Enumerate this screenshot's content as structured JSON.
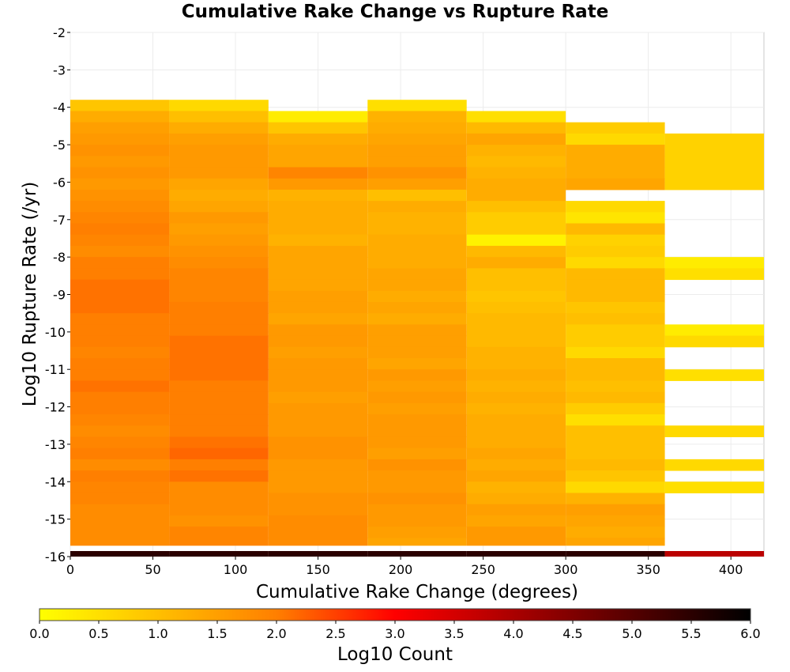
{
  "chart_data": {
    "type": "heatmap",
    "title": "Cumulative Rake Change vs Rupture Rate",
    "xlabel": "Cumulative Rake Change (degrees)",
    "ylabel": "Log10 Rupture Rate (/yr)",
    "xlim": [
      0,
      420
    ],
    "ylim": [
      -16,
      -2
    ],
    "x_ticks": [
      "0",
      "50",
      "100",
      "150",
      "200",
      "250",
      "300",
      "350",
      "400"
    ],
    "x_tick_values": [
      0,
      50,
      100,
      150,
      200,
      250,
      300,
      350,
      400
    ],
    "y_ticks": [
      "-2",
      "-3",
      "-4",
      "-5",
      "-6",
      "-7",
      "-8",
      "-9",
      "-10",
      "-11",
      "-12",
      "-13",
      "-14",
      "-15",
      "-16"
    ],
    "y_tick_values": [
      -2,
      -3,
      -4,
      -5,
      -6,
      -7,
      -8,
      -9,
      -10,
      -11,
      -12,
      -13,
      -14,
      -15,
      -16
    ],
    "grid": true,
    "x_bin_width": 60,
    "y_bin_height": 0.3,
    "x_bins": [
      0,
      60,
      120,
      180,
      240,
      300,
      360
    ],
    "columns": [
      {
        "x": 0,
        "y_top": -3.8,
        "values": [
          0.9,
          1.3,
          1.5,
          1.6,
          1.7,
          1.6,
          1.7,
          1.6,
          1.7,
          1.8,
          1.9,
          2.0,
          1.9,
          1.8,
          2.0,
          2.0,
          2.1,
          2.1,
          2.1,
          2.0,
          2.0,
          2.0,
          1.9,
          2.0,
          2.0,
          2.1,
          2.0,
          2.0,
          1.9,
          1.8,
          1.9,
          2.0,
          1.8,
          2.0,
          1.9,
          1.9,
          1.8,
          1.8,
          1.8,
          1.8,
          1.9,
          1.9,
          2.0,
          1.9
        ]
      },
      {
        "x": 60,
        "y_top": -3.8,
        "values": [
          0.6,
          1.0,
          1.3,
          1.5,
          1.6,
          1.6,
          1.6,
          1.4,
          1.3,
          1.4,
          1.6,
          1.5,
          1.6,
          1.7,
          1.8,
          1.9,
          1.9,
          1.9,
          2.0,
          2.0,
          2.0,
          2.1,
          2.1,
          2.1,
          2.1,
          2.0,
          2.0,
          2.0,
          2.0,
          2.0,
          2.1,
          2.2,
          2.0,
          2.1,
          1.8,
          1.8,
          1.8,
          1.7,
          1.9,
          1.9,
          1.9,
          2.0,
          2.0,
          2.0
        ]
      },
      {
        "x": 120,
        "y_top": -4.1,
        "values": [
          0.3,
          0.9,
          1.3,
          1.4,
          1.4,
          1.9,
          1.6,
          1.2,
          1.3,
          1.3,
          1.3,
          1.2,
          1.4,
          1.4,
          1.4,
          1.4,
          1.5,
          1.5,
          1.4,
          1.6,
          1.6,
          1.5,
          1.6,
          1.6,
          1.6,
          1.5,
          1.6,
          1.6,
          1.6,
          1.7,
          1.7,
          1.6,
          1.6,
          1.6,
          1.7,
          1.7,
          1.8,
          1.8,
          1.8,
          1.8
        ]
      },
      {
        "x": 180,
        "y_top": -3.8,
        "values": [
          0.5,
          1.2,
          1.3,
          1.4,
          1.5,
          1.5,
          1.7,
          1.5,
          1.0,
          1.3,
          1.2,
          1.2,
          1.3,
          1.3,
          1.3,
          1.4,
          1.4,
          1.3,
          1.4,
          1.3,
          1.5,
          1.5,
          1.5,
          1.4,
          1.6,
          1.5,
          1.6,
          1.5,
          1.6,
          1.6,
          1.6,
          1.5,
          1.7,
          1.6,
          1.6,
          1.7,
          1.6,
          1.6,
          1.5,
          1.4,
          1.6,
          1.6,
          1.5,
          2.0
        ]
      },
      {
        "x": 240,
        "y_top": -4.1,
        "values": [
          0.5,
          1.1,
          1.4,
          1.2,
          1.1,
          1.2,
          1.3,
          1.3,
          1.0,
          0.8,
          0.8,
          0.2,
          1.1,
          1.3,
          1.0,
          1.0,
          0.9,
          1.0,
          1.1,
          1.1,
          1.1,
          1.2,
          1.2,
          1.3,
          1.2,
          1.3,
          1.2,
          1.3,
          1.3,
          1.3,
          1.4,
          1.3,
          1.4,
          1.2,
          1.3,
          1.5,
          1.4,
          1.6,
          1.6,
          1.6
        ]
      },
      {
        "x": 300,
        "y_top": -4.4,
        "values": [
          0.8,
          0.6,
          1.3,
          1.3,
          1.3,
          1.4,
          null,
          0.6,
          0.4,
          1.1,
          0.7,
          0.8,
          0.6,
          1.1,
          1.1,
          1.1,
          0.9,
          1.0,
          0.8,
          0.8,
          0.6,
          1.1,
          1.1,
          1.0,
          1.1,
          0.8,
          0.5,
          1.0,
          1.0,
          1.0,
          1.1,
          0.9,
          0.6,
          1.2,
          1.5,
          1.4,
          1.3,
          1.4,
          1.4,
          1.5
        ]
      },
      {
        "x": 360,
        "y_top": -4.7,
        "values": [
          0.7,
          0.7,
          0.7,
          0.7,
          0.7,
          null,
          null,
          null,
          null,
          null,
          null,
          0.3,
          0.5,
          null,
          null,
          null,
          null,
          0.3,
          0.6,
          null,
          null,
          0.5,
          null,
          null,
          null,
          null,
          0.6,
          null,
          null,
          0.6,
          null,
          0.5,
          null,
          null,
          null,
          null,
          null,
          0.6,
          0.4,
          0.4
        ]
      }
    ],
    "bottom_row": {
      "y": -16,
      "values": [
        5.5,
        5.5,
        5.5,
        5.5,
        5.5,
        5.5,
        3.8
      ]
    },
    "colorbar": {
      "label": "Log10 Count",
      "range": [
        0,
        6
      ],
      "ticks": [
        "0.0",
        "0.5",
        "1.0",
        "1.5",
        "2.0",
        "2.5",
        "3.0",
        "3.5",
        "4.0",
        "4.5",
        "5.0",
        "5.5",
        "6.0"
      ],
      "tick_values": [
        0,
        0.5,
        1.0,
        1.5,
        2.0,
        2.5,
        3.0,
        3.5,
        4.0,
        4.5,
        5.0,
        5.5,
        6.0
      ],
      "stops": [
        {
          "v": 0.0,
          "color": "#ffff00"
        },
        {
          "v": 1.0,
          "color": "#ffbf00"
        },
        {
          "v": 2.0,
          "color": "#ff7f00"
        },
        {
          "v": 3.0,
          "color": "#ff0000"
        },
        {
          "v": 4.0,
          "color": "#aa0000"
        },
        {
          "v": 5.0,
          "color": "#550000"
        },
        {
          "v": 6.0,
          "color": "#000000"
        }
      ]
    }
  }
}
